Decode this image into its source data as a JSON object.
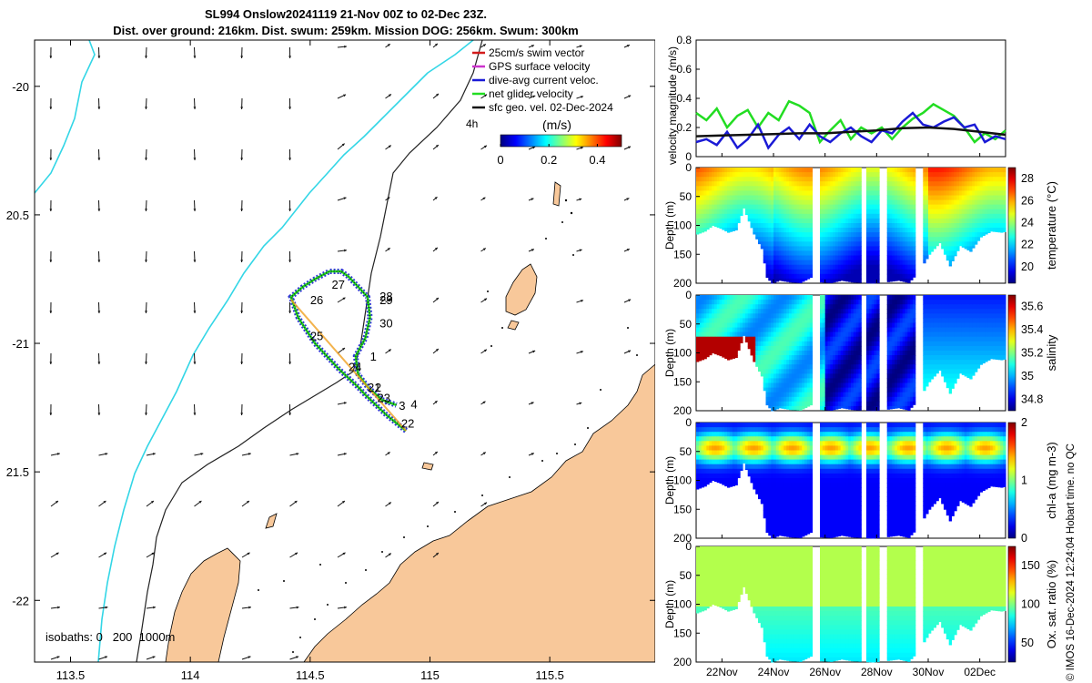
{
  "header": {
    "title_line1": "SL994 Onslow20241119 21-Nov 00Z to 02-Dec 23Z.",
    "title_line2": "Dist. over ground: 216km. Dist. swum: 259km. Mission DOG: 256km. Swum: 300km"
  },
  "credit": "© IMOS 16-Dec-2024 12:24:04 Hobart time. no QC",
  "colors": {
    "land": "#f8c89a",
    "coast": "#000000",
    "isobath_200": "#222222",
    "isobath_1000": "#33d6e6",
    "track_swim": "#d21c1c",
    "gps": "#cc33cc",
    "dac": "#1a1ad6",
    "net": "#22dd22",
    "geo": "#111111"
  },
  "map": {
    "lon_ticks": [
      "113.5",
      "114",
      "114.5",
      "115",
      "115.5"
    ],
    "lat_ticks": [
      "-20",
      "20.5",
      "-21",
      "21.5",
      "-22"
    ],
    "isobaths_label": "isobaths: 0   200  1000m",
    "legend": [
      {
        "label": "25cm/s swim vector",
        "color": "#d21c1c"
      },
      {
        "label": "GPS surface velocity",
        "color": "#cc33cc"
      },
      {
        "label": "dive-avg current veloc.",
        "color": "#1a1ad6"
      },
      {
        "label": "net glider velocity",
        "color": "#22dd22"
      },
      {
        "label": "sfc geo. vel. 02-Dec-2024",
        "color": "#111111"
      }
    ],
    "legend_extra": "4h",
    "colorbar_title": "(m/s)",
    "colorbar_ticks": [
      "0",
      "0.2",
      "0.4"
    ],
    "day_labels": [
      {
        "label": "27",
        "lon": 114.59,
        "lat": -20.77
      },
      {
        "label": "26",
        "lon": 114.5,
        "lat": -20.83
      },
      {
        "label": "28",
        "lon": 114.79,
        "lat": -20.815
      },
      {
        "label": "29",
        "lon": 114.79,
        "lat": -20.83
      },
      {
        "label": "30",
        "lon": 114.79,
        "lat": -20.92
      },
      {
        "label": "25",
        "lon": 114.5,
        "lat": -20.97
      },
      {
        "label": "1",
        "lon": 114.75,
        "lat": -21.05
      },
      {
        "label": "24",
        "lon": 114.66,
        "lat": -21.09
      },
      {
        "label": "21",
        "lon": 114.74,
        "lat": -21.17
      },
      {
        "label": "2",
        "lon": 114.77,
        "lat": -21.17
      },
      {
        "label": "23",
        "lon": 114.78,
        "lat": -21.21
      },
      {
        "label": "3",
        "lon": 114.87,
        "lat": -21.24
      },
      {
        "label": "4",
        "lon": 114.92,
        "lat": -21.235
      },
      {
        "label": "22",
        "lon": 114.88,
        "lat": -21.31
      }
    ]
  },
  "time_axis": {
    "start_day": 21.0,
    "end_day": 33.0,
    "tick_days": [
      22,
      24,
      26,
      28,
      30,
      32
    ],
    "tick_labels": [
      "22Nov",
      "24Nov",
      "26Nov",
      "28Nov",
      "30Nov",
      "02Dec"
    ],
    "gaps": [
      [
        25.45,
        25.8
      ],
      [
        27.4,
        27.55
      ],
      [
        28.05,
        28.35
      ],
      [
        29.5,
        29.8
      ]
    ]
  },
  "chart_data": [
    {
      "type": "line",
      "title": "",
      "ylabel": "velocity magnitude (m/s)",
      "ylim": [
        0,
        0.8
      ],
      "yticks": [
        "0",
        "0.2",
        "0.4",
        "0.6",
        "0.8"
      ],
      "series": [
        {
          "name": "net glider velocity",
          "color": "#22dd22",
          "x": [
            21.0,
            21.4,
            21.8,
            22.2,
            22.6,
            23.0,
            23.4,
            23.8,
            24.2,
            24.6,
            25.0,
            25.4,
            25.8,
            26.2,
            26.6,
            27.0,
            27.4,
            27.8,
            28.2,
            28.6,
            29.0,
            29.4,
            29.8,
            30.2,
            30.6,
            31.0,
            31.4,
            31.8,
            32.2,
            32.6,
            33.0
          ],
          "y": [
            0.3,
            0.25,
            0.33,
            0.2,
            0.28,
            0.32,
            0.2,
            0.3,
            0.25,
            0.38,
            0.35,
            0.3,
            0.1,
            0.18,
            0.25,
            0.12,
            0.2,
            0.16,
            0.2,
            0.12,
            0.2,
            0.26,
            0.3,
            0.36,
            0.32,
            0.28,
            0.2,
            0.1,
            0.16,
            0.12,
            0.18
          ]
        },
        {
          "name": "dive-avg current veloc.",
          "color": "#1a1ad6",
          "x": [
            21.0,
            21.4,
            21.8,
            22.2,
            22.6,
            23.0,
            23.4,
            23.8,
            24.2,
            24.6,
            25.0,
            25.4,
            25.8,
            26.2,
            26.6,
            27.0,
            27.4,
            27.8,
            28.2,
            28.6,
            29.0,
            29.4,
            29.8,
            30.2,
            30.6,
            31.0,
            31.4,
            31.8,
            32.2,
            32.6,
            33.0
          ],
          "y": [
            0.1,
            0.12,
            0.08,
            0.17,
            0.06,
            0.12,
            0.22,
            0.06,
            0.15,
            0.2,
            0.12,
            0.22,
            0.14,
            0.1,
            0.16,
            0.2,
            0.14,
            0.1,
            0.18,
            0.16,
            0.24,
            0.3,
            0.22,
            0.2,
            0.24,
            0.27,
            0.2,
            0.22,
            0.1,
            0.14,
            0.12
          ]
        },
        {
          "name": "sfc geo. vel.",
          "color": "#111111",
          "x": [
            21.0,
            22.0,
            23.0,
            24.0,
            25.0,
            26.0,
            27.0,
            28.0,
            29.0,
            30.0,
            31.0,
            32.0,
            33.0
          ],
          "y": [
            0.14,
            0.145,
            0.15,
            0.155,
            0.16,
            0.16,
            0.17,
            0.18,
            0.195,
            0.2,
            0.19,
            0.17,
            0.15
          ]
        }
      ]
    },
    {
      "type": "heatmap",
      "variable": "temperature",
      "ylabel": "Depth (m)",
      "cbar_label": "temperature (°C)",
      "ylim": [
        0,
        200
      ],
      "yticks": [
        "0",
        "50",
        "100",
        "150",
        "200"
      ],
      "clim": [
        18.5,
        29
      ],
      "cticks": [
        "20",
        "22",
        "24",
        "26",
        "28"
      ],
      "cmap": "jet"
    },
    {
      "type": "heatmap",
      "variable": "salinity",
      "ylabel": "Depth (m)",
      "cbar_label": "salinity",
      "ylim": [
        0,
        200
      ],
      "yticks": [
        "0",
        "50",
        "100",
        "150",
        "200"
      ],
      "clim": [
        34.7,
        35.7
      ],
      "cticks": [
        "34.8",
        "35",
        "35.2",
        "35.4",
        "35.6"
      ],
      "cmap": "jet"
    },
    {
      "type": "heatmap",
      "variable": "chl-a",
      "ylabel": "Depth (m)",
      "cbar_label": "chl-a (mg m-3)",
      "ylim": [
        0,
        200
      ],
      "yticks": [
        "0",
        "50",
        "100",
        "150",
        "200"
      ],
      "clim": [
        0,
        2
      ],
      "cticks": [
        "0",
        "1",
        "2"
      ],
      "cmap": "jet"
    },
    {
      "type": "heatmap",
      "variable": "oxygen saturation",
      "ylabel": "Depth (m)",
      "cbar_label": "Ox. sat. ratio (%)",
      "ylim": [
        0,
        200
      ],
      "yticks": [
        "0",
        "50",
        "100",
        "150",
        "200"
      ],
      "clim": [
        25,
        175
      ],
      "cticks": [
        "50",
        "100",
        "150"
      ],
      "cmap": "jet"
    }
  ],
  "profile_depth": {
    "x": [
      21.0,
      21.3,
      21.6,
      21.9,
      22.2,
      22.5,
      22.8,
      23.2,
      23.5,
      23.7,
      23.9,
      24.2,
      24.6,
      25.0,
      25.4,
      25.8,
      26.2,
      26.6,
      27.0,
      27.4,
      27.8,
      28.3,
      28.8,
      29.2,
      29.6,
      30.0,
      30.4,
      30.8,
      31.2,
      31.6,
      32.0,
      32.4,
      32.8,
      33.0
    ],
    "y": [
      115,
      110,
      100,
      105,
      112,
      108,
      70,
      115,
      140,
      190,
      200,
      195,
      198,
      199,
      190,
      198,
      199,
      195,
      198,
      199,
      200,
      198,
      195,
      199,
      180,
      150,
      130,
      170,
      135,
      145,
      120,
      110,
      112,
      110
    ]
  }
}
